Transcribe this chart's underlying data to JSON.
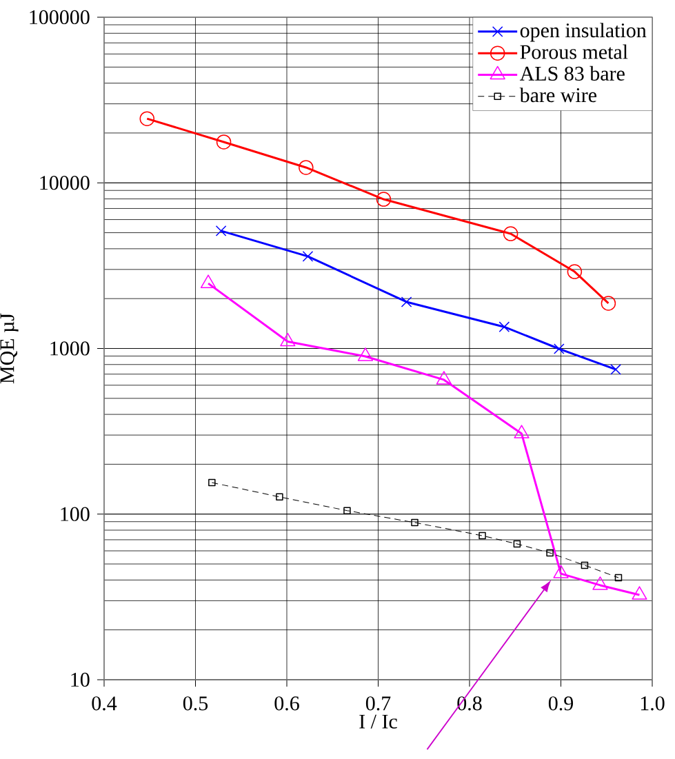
{
  "chart_data": {
    "type": "line",
    "xlabel": "I / Ic",
    "ylabel": "MQE µJ",
    "log": "y",
    "xlim": [
      0.4,
      1.0
    ],
    "xticks": [
      0.4,
      0.5,
      0.6,
      0.7,
      0.8,
      0.9,
      {
        "value": 1.0,
        "label": "1.0"
      }
    ],
    "ylim": [
      10,
      100000
    ],
    "yticks": [
      10,
      100,
      1000,
      10000,
      100000
    ],
    "grid": true,
    "legend": "top right",
    "series": [
      {
        "name": "open insulation",
        "color": "#0000ff",
        "marker": "cross",
        "line_style": "solid",
        "x": [
          0.528,
          0.623,
          0.731,
          0.838,
          0.898,
          0.96
        ],
        "values": [
          5130,
          3600,
          1910,
          1350,
          995,
          747
        ]
      },
      {
        "name": "Porous metal",
        "color": "#ff0000",
        "marker": "circle",
        "line_style": "solid",
        "x": [
          0.447,
          0.531,
          0.621,
          0.706,
          0.845,
          0.915,
          0.952
        ],
        "values": [
          24400,
          17650,
          12380,
          7960,
          4930,
          2910,
          1875
        ]
      },
      {
        "name": "ALS 83 bare",
        "color": "#ff00ff",
        "marker": "triangle",
        "line_style": "solid",
        "x": [
          0.514,
          0.601,
          0.686,
          0.772,
          0.857,
          0.9,
          0.943,
          0.986
        ],
        "values": [
          2470,
          1100,
          896,
          647,
          306,
          43.7,
          37.2,
          32.5
        ]
      },
      {
        "name": "bare wire",
        "color": "#000000",
        "marker": "square",
        "line_style": "dashed",
        "x": [
          0.518,
          0.592,
          0.666,
          0.74,
          0.814,
          0.852,
          0.888,
          0.926,
          0.963
        ],
        "values": [
          155,
          127,
          105,
          88.9,
          74.1,
          66.1,
          58.3,
          49.1,
          41.3
        ]
      }
    ]
  }
}
